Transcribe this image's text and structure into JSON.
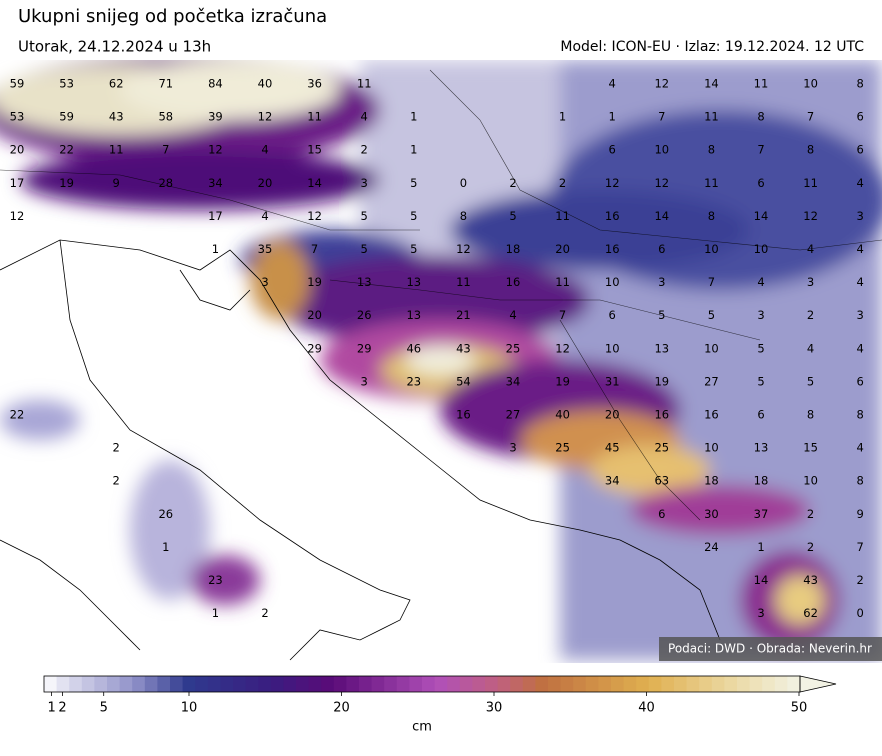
{
  "header": {
    "title": "Ukupni snijeg od početka izračuna",
    "subtitle": "Utorak, 24.12.2024 u 13h",
    "model": "Model: ICON-EU · Izlaz: 19.12.2024. 12 UTC"
  },
  "map": {
    "grid": [
      [
        59,
        53,
        62,
        71,
        84,
        40,
        36,
        11,
        null,
        null,
        null,
        null,
        4,
        12,
        14,
        11,
        10,
        8
      ],
      [
        53,
        59,
        43,
        58,
        39,
        12,
        11,
        4,
        1,
        null,
        null,
        1,
        1,
        7,
        11,
        8,
        7,
        6
      ],
      [
        20,
        22,
        11,
        7,
        12,
        4,
        15,
        2,
        1,
        null,
        null,
        null,
        6,
        10,
        8,
        7,
        8,
        6
      ],
      [
        17,
        19,
        9,
        28,
        34,
        20,
        14,
        3,
        5,
        0,
        2,
        2,
        12,
        12,
        11,
        6,
        11,
        4
      ],
      [
        12,
        null,
        null,
        null,
        17,
        4,
        12,
        5,
        5,
        8,
        5,
        11,
        16,
        14,
        8,
        14,
        12,
        3
      ],
      [
        null,
        null,
        null,
        null,
        1,
        35,
        7,
        5,
        5,
        12,
        18,
        20,
        16,
        6,
        10,
        10,
        4,
        4
      ],
      [
        null,
        null,
        null,
        null,
        null,
        3,
        19,
        13,
        13,
        11,
        16,
        11,
        10,
        3,
        7,
        4,
        3,
        4
      ],
      [
        null,
        null,
        null,
        null,
        null,
        null,
        20,
        26,
        13,
        21,
        4,
        7,
        6,
        5,
        5,
        3,
        2,
        3
      ],
      [
        null,
        null,
        null,
        null,
        null,
        null,
        29,
        29,
        46,
        43,
        25,
        12,
        10,
        13,
        10,
        5,
        4,
        4
      ],
      [
        null,
        null,
        null,
        null,
        null,
        null,
        null,
        3,
        23,
        54,
        34,
        19,
        31,
        19,
        27,
        5,
        5,
        6
      ],
      [
        22,
        null,
        null,
        null,
        null,
        null,
        null,
        null,
        null,
        16,
        27,
        40,
        20,
        16,
        16,
        6,
        8,
        8
      ],
      [
        null,
        null,
        2,
        null,
        null,
        null,
        null,
        null,
        null,
        null,
        3,
        25,
        45,
        25,
        10,
        13,
        15,
        4
      ],
      [
        null,
        null,
        2,
        null,
        null,
        null,
        null,
        null,
        null,
        null,
        null,
        null,
        34,
        63,
        18,
        18,
        10,
        8
      ],
      [
        null,
        null,
        null,
        26,
        null,
        null,
        null,
        null,
        null,
        null,
        null,
        null,
        null,
        6,
        30,
        37,
        2,
        9
      ],
      [
        null,
        null,
        null,
        1,
        null,
        null,
        null,
        null,
        null,
        null,
        null,
        null,
        null,
        null,
        24,
        1,
        2,
        7
      ],
      [
        null,
        null,
        null,
        null,
        23,
        null,
        null,
        null,
        null,
        null,
        null,
        null,
        null,
        null,
        null,
        14,
        43,
        2
      ],
      [
        null,
        null,
        null,
        null,
        1,
        2,
        null,
        null,
        null,
        null,
        null,
        null,
        null,
        null,
        null,
        3,
        62,
        0
      ]
    ],
    "credit": "Podaci: DWD · Obrada: Neverin.hr"
  },
  "colorbar": {
    "ticks": [
      1,
      2,
      5,
      10,
      20,
      30,
      40,
      50
    ],
    "label": "cm"
  }
}
